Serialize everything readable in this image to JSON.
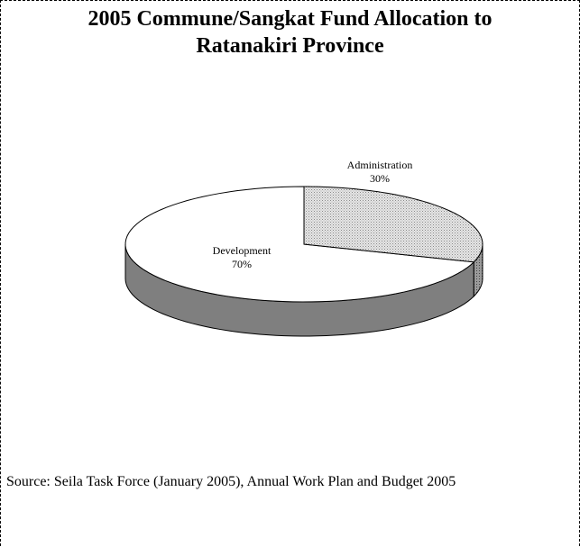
{
  "title_line1": "2005 Commune/Sangkat Fund Allocation to",
  "title_line2": "Ratanakiri Province",
  "source": "Source: Seila Task Force (January 2005), Annual Work Plan and Budget 2005",
  "chart_data": {
    "type": "pie",
    "title": "2005 Commune/Sangkat Fund Allocation to Ratanakiri Province",
    "categories": [
      "Administration",
      "Development"
    ],
    "values": [
      30,
      70
    ],
    "labels": [
      "30%",
      "70%"
    ],
    "style": "3d",
    "colors": {
      "Administration": "#d4d4d4",
      "Development": "#ffffff",
      "side": "#7f7f7f"
    }
  }
}
